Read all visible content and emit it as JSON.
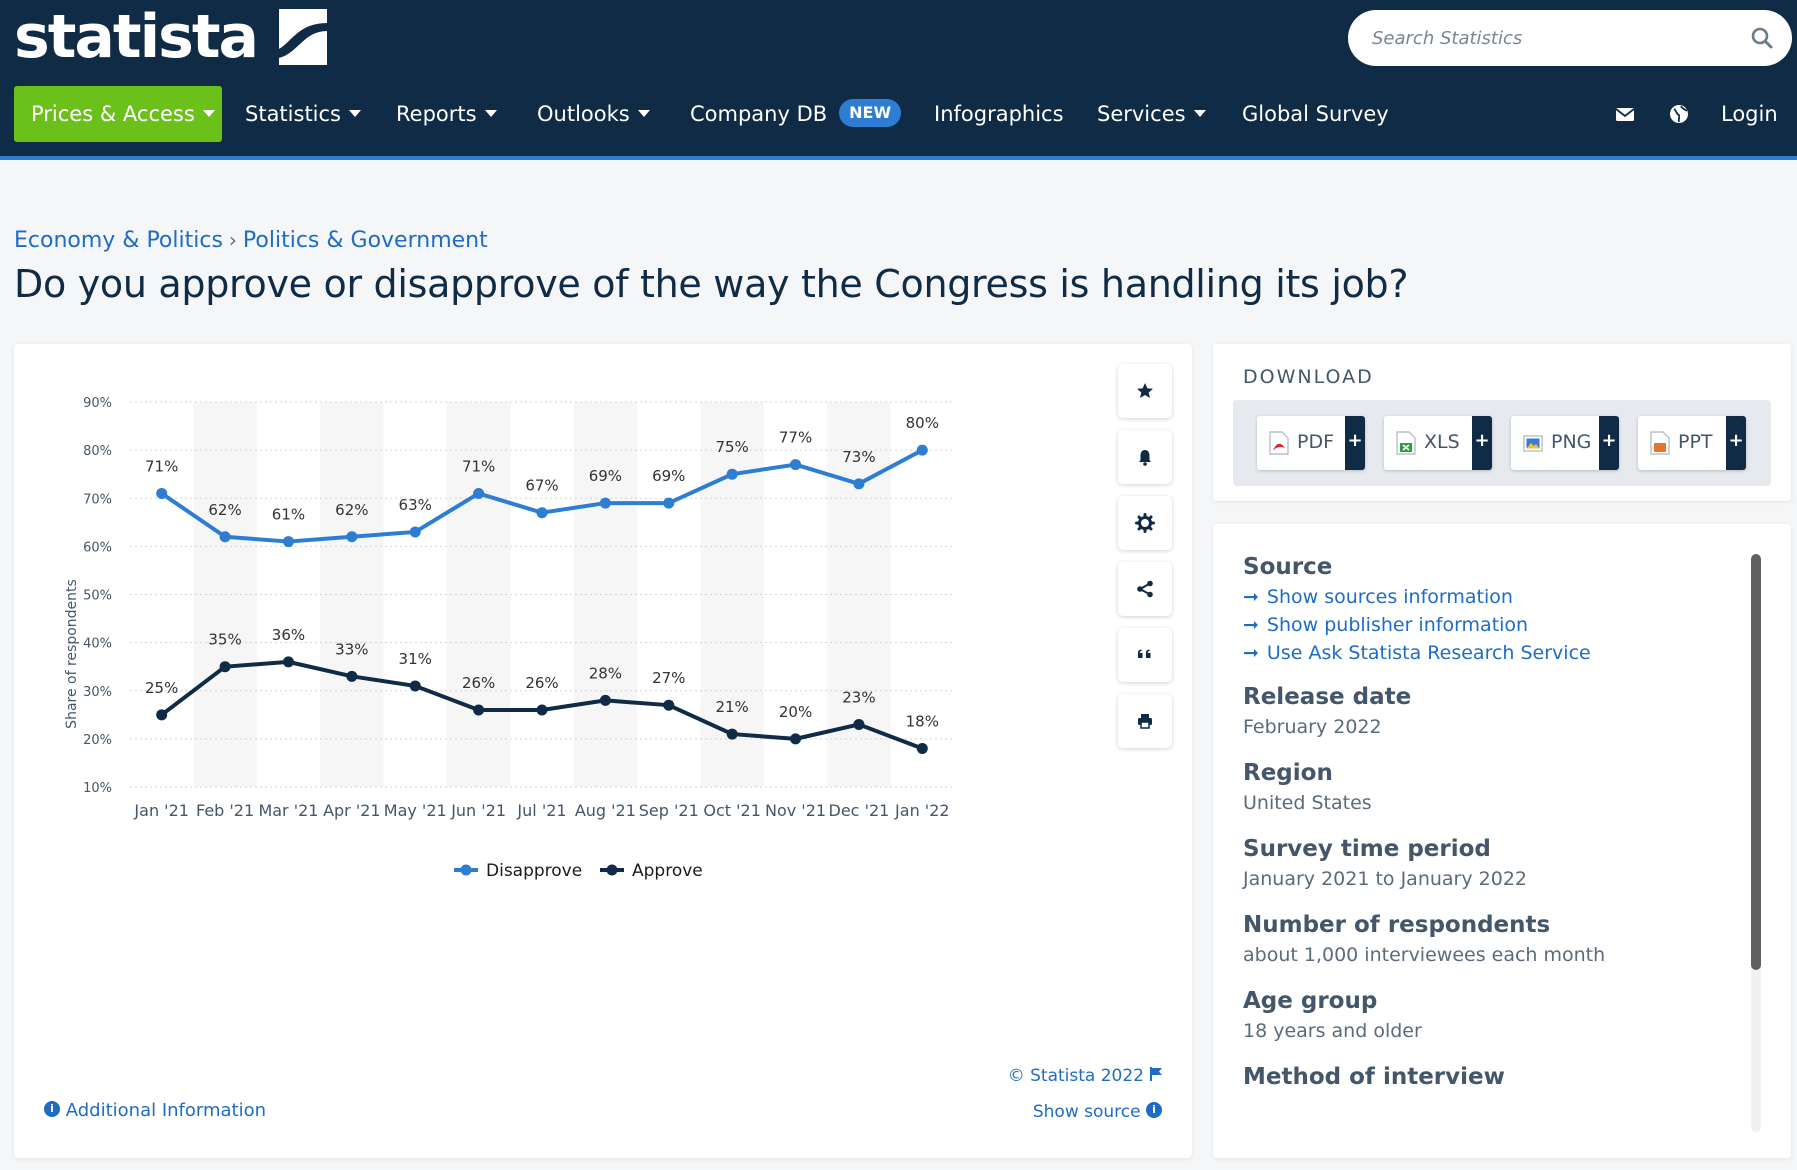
{
  "header": {
    "logo_text": "statista",
    "search_placeholder": "Search Statistics",
    "nav": [
      {
        "label": "Prices & Access"
      },
      {
        "label": "Statistics"
      },
      {
        "label": "Reports"
      },
      {
        "label": "Outlooks"
      },
      {
        "label": "Company DB",
        "badge": "NEW"
      },
      {
        "label": "Infographics"
      },
      {
        "label": "Services"
      },
      {
        "label": "Global Survey"
      }
    ],
    "login_label": "Login",
    "icons": [
      "mail-icon",
      "globe-icon"
    ]
  },
  "breadcrumb": [
    "Economy & Politics",
    "Politics & Government"
  ],
  "page_title": "Do you approve or disapprove of the way the Congress is handling its job?",
  "chart_data": {
    "type": "line",
    "title": "",
    "xlabel": "",
    "ylabel": "Share of respondents",
    "categories": [
      "Jan '21",
      "Feb '21",
      "Mar '21",
      "Apr '21",
      "May '21",
      "Jun '21",
      "Jul '21",
      "Aug '21",
      "Sep '21",
      "Oct '21",
      "Nov '21",
      "Dec '21",
      "Jan '22"
    ],
    "y_ticks": [
      "10%",
      "20%",
      "30%",
      "40%",
      "50%",
      "60%",
      "70%",
      "80%",
      "90%"
    ],
    "ylim": [
      10,
      90
    ],
    "grid": true,
    "legend_position": "bottom-center",
    "series": [
      {
        "name": "Disapprove",
        "color": "#2d7dd2",
        "values": [
          71,
          62,
          61,
          62,
          63,
          71,
          67,
          69,
          69,
          75,
          77,
          73,
          80
        ],
        "labels": [
          "71%",
          "62%",
          "61%",
          "62%",
          "63%",
          "71%",
          "67%",
          "69%",
          "69%",
          "75%",
          "77%",
          "73%",
          "80%"
        ]
      },
      {
        "name": "Approve",
        "color": "#0f2b46",
        "values": [
          25,
          35,
          36,
          33,
          31,
          26,
          26,
          28,
          27,
          21,
          20,
          23,
          18
        ],
        "labels": [
          "25%",
          "35%",
          "36%",
          "33%",
          "31%",
          "26%",
          "26%",
          "28%",
          "27%",
          "21%",
          "20%",
          "23%",
          "18%"
        ]
      }
    ]
  },
  "chart_card": {
    "copyright": "© Statista 2022",
    "show_source": "Show source",
    "additional_info": "Additional Information",
    "tools": [
      "star-icon",
      "bell-icon",
      "gear-icon",
      "share-icon",
      "quote-icon",
      "print-icon"
    ]
  },
  "download": {
    "title": "DOWNLOAD",
    "formats": [
      {
        "label": "PDF",
        "color": "#d9232d"
      },
      {
        "label": "XLS",
        "color": "#2e9e3e"
      },
      {
        "label": "PNG",
        "color": "#3a7bd5"
      },
      {
        "label": "PPT",
        "color": "#e8742c"
      }
    ],
    "plus": "+"
  },
  "info": {
    "source_heading": "Source",
    "source_links": [
      "Show sources information",
      "Show publisher information",
      "Use Ask Statista Research Service"
    ],
    "fields": [
      {
        "heading": "Release date",
        "value": "February 2022"
      },
      {
        "heading": "Region",
        "value": "United States"
      },
      {
        "heading": "Survey time period",
        "value": "January 2021 to January 2022"
      },
      {
        "heading": "Number of respondents",
        "value": "about 1,000 interviewees each month"
      },
      {
        "heading": "Age group",
        "value": "18 years and older"
      },
      {
        "heading": "Method of interview",
        "value": ""
      }
    ]
  }
}
